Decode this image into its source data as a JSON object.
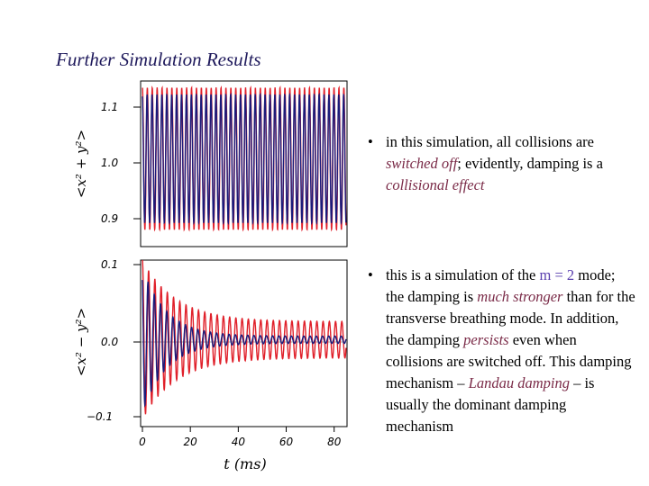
{
  "title": "Further Simulation Results",
  "colors": {
    "series_a": "#e0202a",
    "series_b": "#1a1a7a",
    "title": "#1f1a5c",
    "emphasis": "#7a2a47",
    "m_value": "#5a3fae"
  },
  "bullets": {
    "b1": {
      "t1": "in this simulation, all collisions are ",
      "e1": "switched off",
      "t2": "; evidently, damping is a ",
      "e2": "collisional effect"
    },
    "b2": {
      "t1": "this is a simulation of the ",
      "m": "m = 2",
      "t2": " mode; the damping is ",
      "e1": "much stronger",
      "t3": " than for the transverse breathing mode. In addition, the damping ",
      "e2": "persists",
      "t4": " even when collisions are switched off. This damping mechanism – ",
      "e3": "Landau damping",
      "t5": " – is usually the dominant damping mechanism"
    }
  },
  "chart_data": [
    {
      "type": "line",
      "ylabel": "<x² + y²>",
      "yticks": [
        "1.1",
        "1.0",
        "0.9"
      ],
      "ytick_values": [
        1.1,
        1.0,
        0.9
      ],
      "ylim": [
        0.87,
        1.115
      ],
      "xlim": [
        0,
        85
      ],
      "series": [
        {
          "color": "#e0202a",
          "mean": 1.0,
          "amplitude": 0.105,
          "period_ms": 2.05,
          "decay": "none"
        },
        {
          "color": "#1a1a7a",
          "mean": 1.0,
          "amplitude": 0.095,
          "period_ms": 2.05,
          "decay": "none"
        }
      ]
    },
    {
      "type": "line",
      "xlabel": "t (ms)",
      "ylabel": "<x² − y²>",
      "yticks": [
        "0.1",
        "0.0",
        "−0.1"
      ],
      "ytick_values": [
        0.1,
        0.0,
        -0.1
      ],
      "xticks": [
        "0",
        "20",
        "40",
        "60",
        "80"
      ],
      "xtick_values": [
        0,
        20,
        40,
        60,
        80
      ],
      "ylim": [
        -0.12,
        0.11
      ],
      "xlim": [
        0,
        85
      ],
      "series": [
        {
          "color": "#e0202a",
          "amplitude_start": 0.11,
          "amplitude_end": 0.025,
          "period_ms": 2.6
        },
        {
          "color": "#1a1a7a",
          "amplitude_start": 0.1,
          "amplitude_end": 0.005,
          "period_ms": 2.6
        }
      ]
    }
  ]
}
